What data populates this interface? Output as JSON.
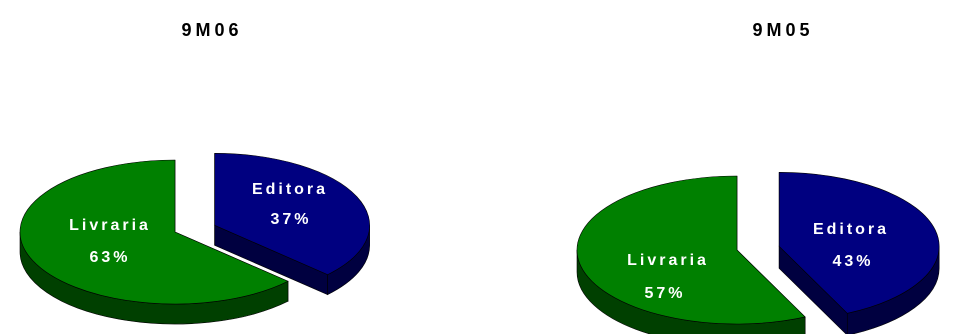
{
  "chart_data": [
    {
      "type": "pie",
      "title": "9M06",
      "slices": [
        {
          "label": "Editora",
          "value": 37,
          "value_text": "37%",
          "color": "#000080",
          "side": "#000040",
          "exploded": true
        },
        {
          "label": "Livraria",
          "value": 63,
          "value_text": "63%",
          "color": "#008000",
          "side": "#004000",
          "exploded": false
        }
      ]
    },
    {
      "type": "pie",
      "title": "9M05",
      "slices": [
        {
          "label": "Editora",
          "value": 43,
          "value_text": "43%",
          "color": "#000080",
          "side": "#000040",
          "exploded": true
        },
        {
          "label": "Livraria",
          "value": 57,
          "value_text": "57%",
          "color": "#008000",
          "side": "#004000",
          "exploded": false
        }
      ]
    }
  ]
}
